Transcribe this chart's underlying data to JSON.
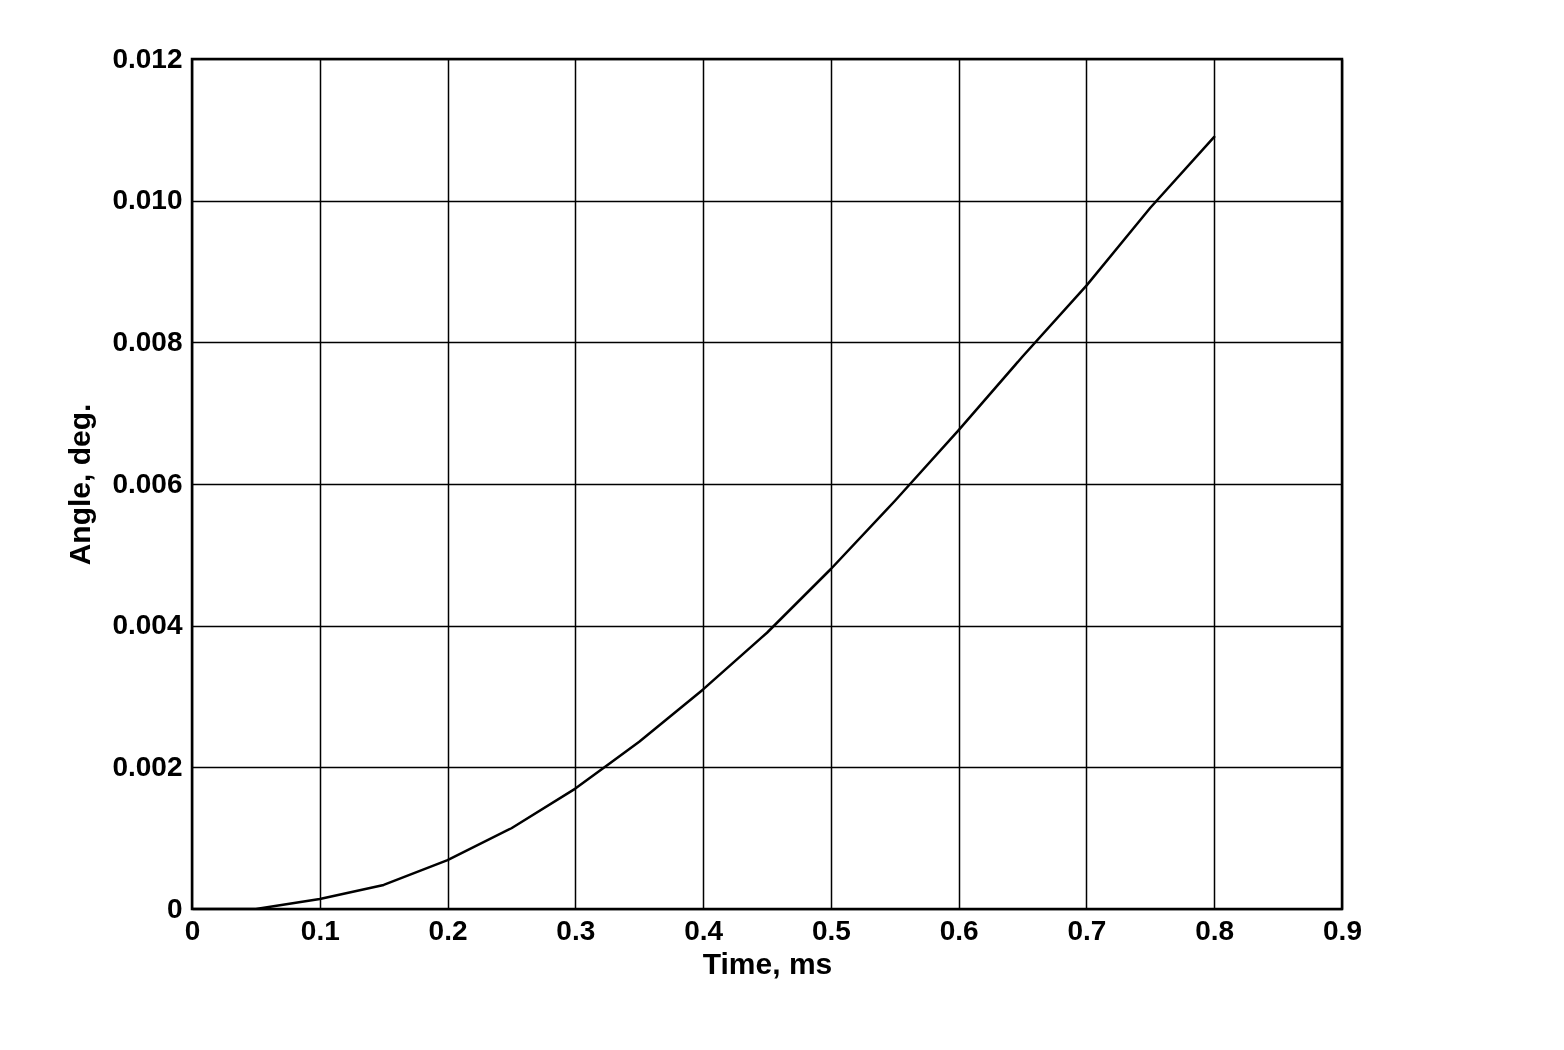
{
  "chart_data": {
    "type": "line",
    "xlabel": "Time, ms",
    "ylabel": "Angle, deg.",
    "x": [
      0,
      0.05,
      0.1,
      0.15,
      0.2,
      0.25,
      0.3,
      0.35,
      0.4,
      0.45,
      0.5,
      0.55,
      0.6,
      0.65,
      0.7,
      0.75,
      0.8
    ],
    "series": [
      {
        "color": "#000000",
        "values": [
          0,
          0,
          0.00014,
          0.00034,
          0.00069,
          0.00114,
          0.0017,
          0.00236,
          0.0031,
          0.0039,
          0.0048,
          0.00576,
          0.00676,
          0.0078,
          0.0088,
          0.0099,
          0.0109
        ]
      }
    ],
    "xlim": [
      0,
      0.9
    ],
    "xticks": [
      0,
      0.1,
      0.2,
      0.3,
      0.4,
      0.5,
      0.6,
      0.7,
      0.8,
      0.9
    ],
    "ylim": [
      0,
      0.012
    ],
    "yticks": [
      0,
      0.002,
      0.004,
      0.006,
      0.008,
      {
        "value": 0.01,
        "label": "0.010"
      },
      0.012
    ],
    "grid": true,
    "marker": "none",
    "line_style": "solid"
  }
}
